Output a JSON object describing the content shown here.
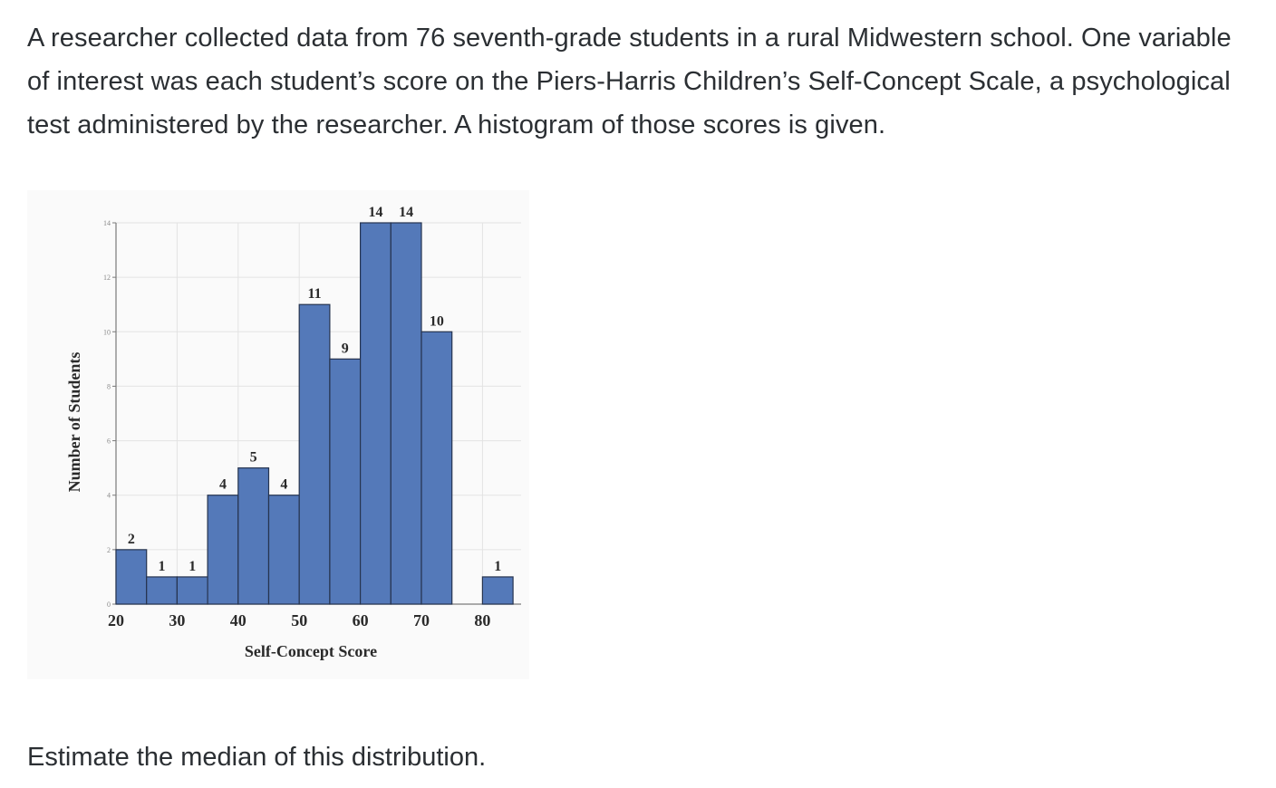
{
  "question": {
    "intro": "A researcher collected data from 76 seventh-grade students in a rural Midwestern school.   One variable of interest was each student’s score on the Piers-Harris Children’s Self-Concept Scale, a psychological test administered by the researcher.  A histogram of those scores is given.",
    "prompt": "Estimate the median of this distribution."
  },
  "chart_data": {
    "type": "bar",
    "subtype": "histogram",
    "title": "",
    "xlabel": "Self-Concept Score",
    "ylabel": "Number of Students",
    "bins": [
      {
        "start": 20,
        "end": 25,
        "count": 2,
        "label": "2"
      },
      {
        "start": 25,
        "end": 30,
        "count": 1,
        "label": "1"
      },
      {
        "start": 30,
        "end": 35,
        "count": 1,
        "label": "1"
      },
      {
        "start": 35,
        "end": 40,
        "count": 4,
        "label": "4"
      },
      {
        "start": 40,
        "end": 45,
        "count": 5,
        "label": "5"
      },
      {
        "start": 45,
        "end": 50,
        "count": 4,
        "label": "4"
      },
      {
        "start": 50,
        "end": 55,
        "count": 11,
        "label": "11"
      },
      {
        "start": 55,
        "end": 60,
        "count": 9,
        "label": "9"
      },
      {
        "start": 60,
        "end": 65,
        "count": 14,
        "label": "14"
      },
      {
        "start": 65,
        "end": 70,
        "count": 14,
        "label": "14"
      },
      {
        "start": 70,
        "end": 75,
        "count": 10,
        "label": "10"
      },
      {
        "start": 80,
        "end": 85,
        "count": 1,
        "label": "1"
      }
    ],
    "xticks": [
      20,
      30,
      40,
      50,
      60,
      70,
      80
    ],
    "xtick_labels": [
      "20",
      "30",
      "40",
      "50",
      "60",
      "70",
      "80"
    ],
    "yticks": [
      0,
      2,
      4,
      6,
      8,
      10,
      12,
      14
    ],
    "ytick_labels": [
      "0",
      "2",
      "4",
      "6",
      "8",
      "10",
      "12",
      "14"
    ],
    "xlim": [
      20,
      85
    ],
    "ylim": [
      0,
      14
    ],
    "grid": true,
    "colors": {
      "bar_fill": "#5479b9",
      "bar_stroke": "#26344f",
      "grid": "#e3e3e3",
      "axis": "#7a7a7a",
      "label_text": "#2a2a2a"
    }
  }
}
